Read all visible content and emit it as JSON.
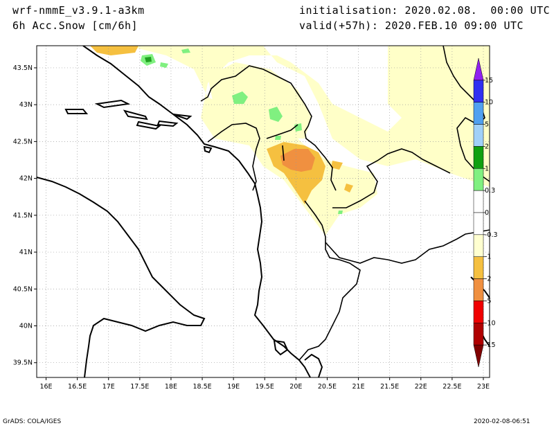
{
  "header": {
    "model": "wrf-nmmE_v3.9.1-a3km",
    "field": "6h Acc.Snow [cm/6h]",
    "init": "initialisation: 2020.02.08.  00:00 UTC",
    "valid": "valid(+57h): 2020.FEB.10 09:00 UTC"
  },
  "footer": {
    "credit": "GrADS: COLA/IGES",
    "timestamp": "2020-02-08-06:51"
  },
  "map": {
    "lon_range": [
      15.85,
      23.1
    ],
    "lat_range": [
      39.3,
      43.8
    ],
    "lon_ticks": [
      "16E",
      "16.5E",
      "17E",
      "17.5E",
      "18E",
      "18.5E",
      "19E",
      "19.5E",
      "20E",
      "20.5E",
      "21E",
      "21.5E",
      "22E",
      "22.5E",
      "23E"
    ],
    "lon_tick_values": [
      16,
      16.5,
      17,
      17.5,
      18,
      18.5,
      19,
      19.5,
      20,
      20.5,
      21,
      21.5,
      22,
      22.5,
      23
    ],
    "lat_ticks": [
      "39.5N",
      "40N",
      "40.5N",
      "41N",
      "41.5N",
      "42N",
      "42.5N",
      "43N",
      "43.5N"
    ],
    "lat_tick_values": [
      39.5,
      40,
      40.5,
      41,
      41.5,
      42,
      42.5,
      43,
      43.5
    ],
    "grid": true,
    "colors": {
      "light_yellow": "#ffffc8",
      "yellow_orange": "#f5c040",
      "orange": "#f09040",
      "light_green": "#80f080",
      "green": "#20a020",
      "dark_green": "#108010"
    }
  },
  "colorbar": {
    "labels": [
      "15",
      "10",
      "5",
      "2",
      "1",
      "0.3",
      "0",
      "-0.3",
      "-1",
      "-2",
      "-5",
      "-10",
      "-15"
    ],
    "colors": [
      "#9020f0",
      "#3030f0",
      "#50a0f0",
      "#a0d0f8",
      "#10a010",
      "#80f080",
      "#ffffff",
      "#ffffff",
      "#ffffd0",
      "#f5c040",
      "#f09040",
      "#f00000",
      "#b00000",
      "#800000"
    ]
  }
}
